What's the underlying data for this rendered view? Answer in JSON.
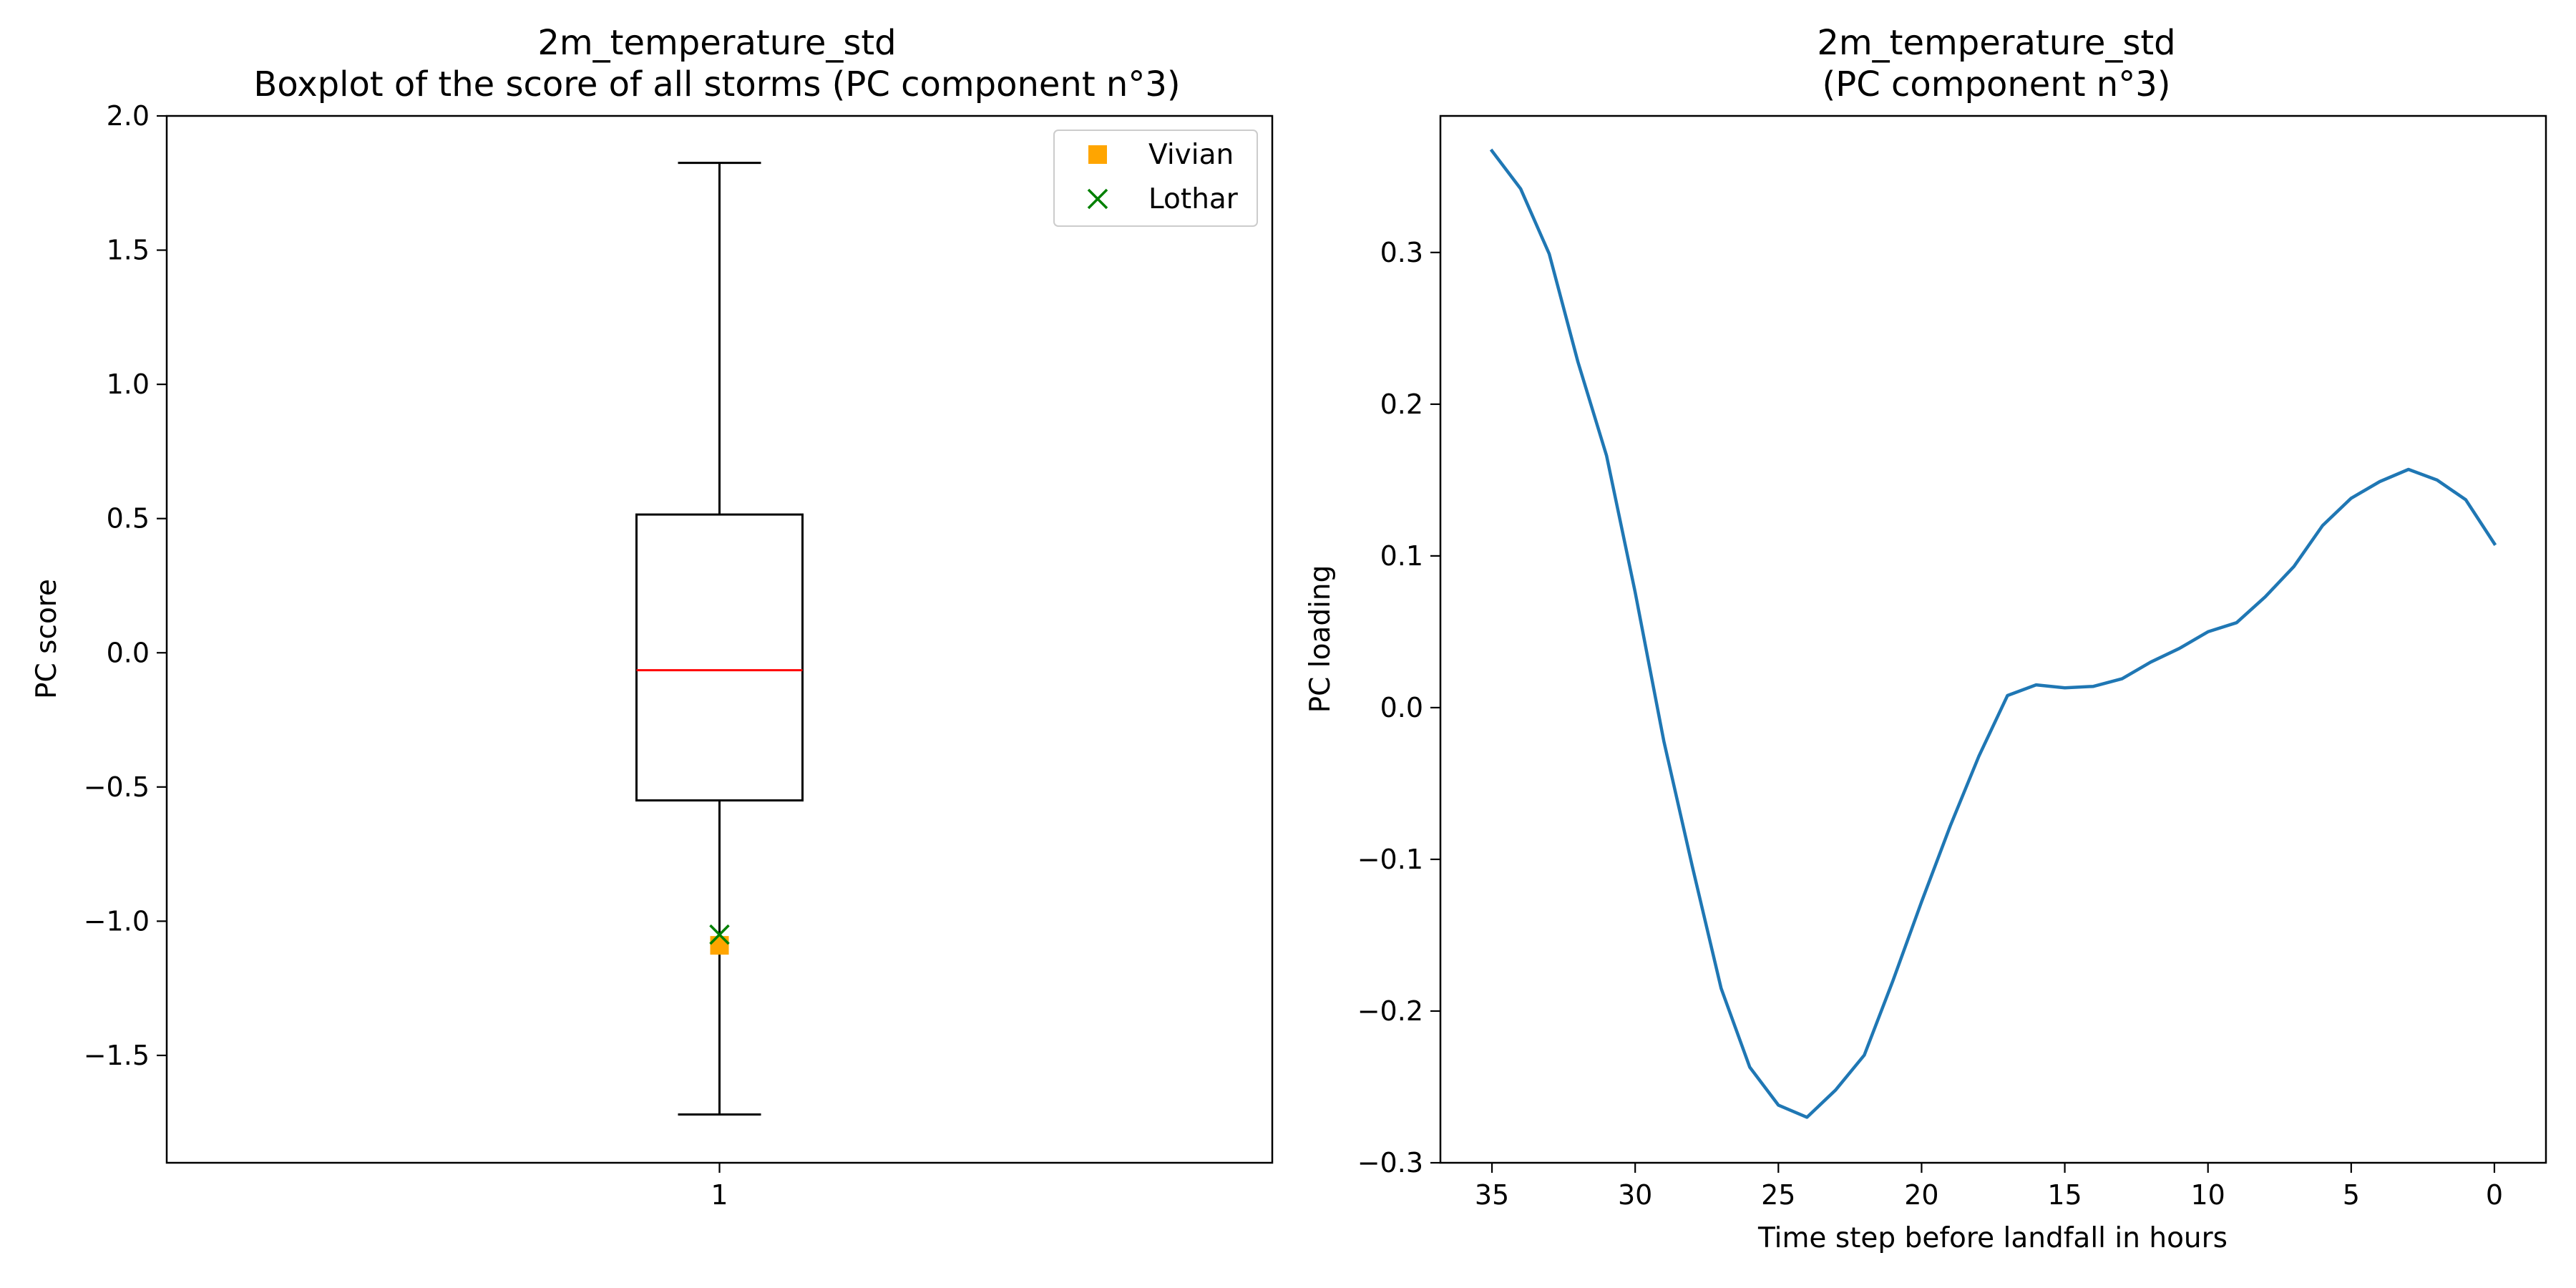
{
  "chart_data": [
    {
      "type": "box",
      "title": "2m_temperature_std",
      "subtitle": "Boxplot of the score of all storms (PC component n°3)",
      "xlabel": "",
      "ylabel": "PC score",
      "categories": [
        "1"
      ],
      "ylim": [
        -1.9,
        2.0
      ],
      "yticks": [
        2.0,
        1.5,
        1.0,
        0.5,
        0.0,
        -0.5,
        -1.0,
        -1.5
      ],
      "ytick_labels": [
        "2.0",
        "1.5",
        "1.0",
        "0.5",
        "0.0",
        "−0.5",
        "−1.0",
        "−1.5"
      ],
      "box": {
        "whisker_low": -1.72,
        "q1": -0.55,
        "median": -0.065,
        "q3": 0.515,
        "whisker_high": 1.825
      },
      "points": [
        {
          "name": "Vivian",
          "x": 1,
          "y": -1.09,
          "marker": "square",
          "color": "#FFA500"
        },
        {
          "name": "Lothar",
          "x": 1,
          "y": -1.05,
          "marker": "x",
          "color": "#008000"
        }
      ],
      "median_color": "#FF0000",
      "legend_position": "top-right",
      "grid": false
    },
    {
      "type": "line",
      "title": "2m_temperature_std",
      "subtitle": "(PC component n°3)",
      "xlabel": "Time step before landfall in hours",
      "ylabel": "PC loading",
      "xlim": [
        36.8,
        -1.8
      ],
      "ylim": [
        -0.3,
        0.39
      ],
      "xticks": [
        35,
        30,
        25,
        20,
        15,
        10,
        5,
        0
      ],
      "xtick_labels": [
        "35",
        "30",
        "25",
        "20",
        "15",
        "10",
        "5",
        "0"
      ],
      "yticks": [
        0.3,
        0.2,
        0.1,
        0.0,
        -0.1,
        -0.2,
        -0.3
      ],
      "ytick_labels": [
        "0.3",
        "0.2",
        "0.1",
        "0.0",
        "−0.1",
        "−0.2",
        "−0.3"
      ],
      "line_color": "#1F77B4",
      "grid": false,
      "x": [
        35,
        34,
        33,
        32,
        31,
        30,
        29,
        28,
        27,
        26,
        25,
        24,
        23,
        22,
        21,
        20,
        19,
        18,
        17,
        16,
        15,
        14,
        13,
        12,
        11,
        10,
        9,
        8,
        7,
        6,
        5,
        4,
        3,
        2,
        1,
        0
      ],
      "y": [
        0.367,
        0.342,
        0.299,
        0.228,
        0.166,
        0.076,
        -0.022,
        -0.105,
        -0.185,
        -0.237,
        -0.262,
        -0.27,
        -0.252,
        -0.229,
        -0.18,
        -0.128,
        -0.078,
        -0.032,
        0.008,
        0.015,
        0.013,
        0.014,
        0.019,
        0.03,
        0.039,
        0.05,
        0.056,
        0.073,
        0.093,
        0.12,
        0.138,
        0.149,
        0.157,
        0.15,
        0.137,
        0.108
      ]
    }
  ]
}
